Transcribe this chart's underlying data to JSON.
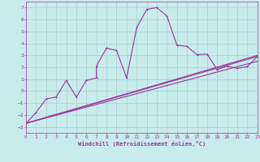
{
  "xlabel": "Windchill (Refroidissement éolien,°C)",
  "background_color": "#c8ecec",
  "grid_color": "#aacccc",
  "line_color": "#993399",
  "xlim": [
    0,
    23
  ],
  "ylim": [
    -3.5,
    7.5
  ],
  "xticks": [
    0,
    1,
    2,
    3,
    4,
    5,
    6,
    7,
    8,
    9,
    10,
    11,
    12,
    13,
    14,
    15,
    16,
    17,
    18,
    19,
    20,
    21,
    22,
    23
  ],
  "yticks": [
    -3,
    -2,
    -1,
    0,
    1,
    2,
    3,
    4,
    5,
    6,
    7
  ],
  "series_main": [
    [
      0,
      -2.7
    ],
    [
      1,
      -1.8
    ],
    [
      2,
      -0.65
    ],
    [
      3,
      -0.5
    ],
    [
      4,
      0.9
    ],
    [
      5,
      -0.5
    ],
    [
      6,
      0.9
    ],
    [
      7,
      1.1
    ],
    [
      7,
      2.1
    ],
    [
      8,
      3.6
    ],
    [
      9,
      3.4
    ],
    [
      10,
      1.1
    ],
    [
      11,
      5.3
    ],
    [
      12,
      6.85
    ],
    [
      13,
      7.0
    ],
    [
      14,
      6.3
    ],
    [
      15,
      3.85
    ],
    [
      16,
      3.75
    ],
    [
      17,
      3.05
    ],
    [
      18,
      3.1
    ],
    [
      19,
      1.8
    ],
    [
      20,
      2.1
    ],
    [
      21,
      1.9
    ],
    [
      22,
      2.05
    ],
    [
      23,
      2.9
    ]
  ],
  "series2": [
    [
      0,
      -2.7
    ],
    [
      23,
      2.5
    ]
  ],
  "series3": [
    [
      0,
      -2.7
    ],
    [
      23,
      2.9
    ]
  ],
  "series4": [
    [
      0,
      -2.7
    ],
    [
      23,
      3.0
    ]
  ]
}
